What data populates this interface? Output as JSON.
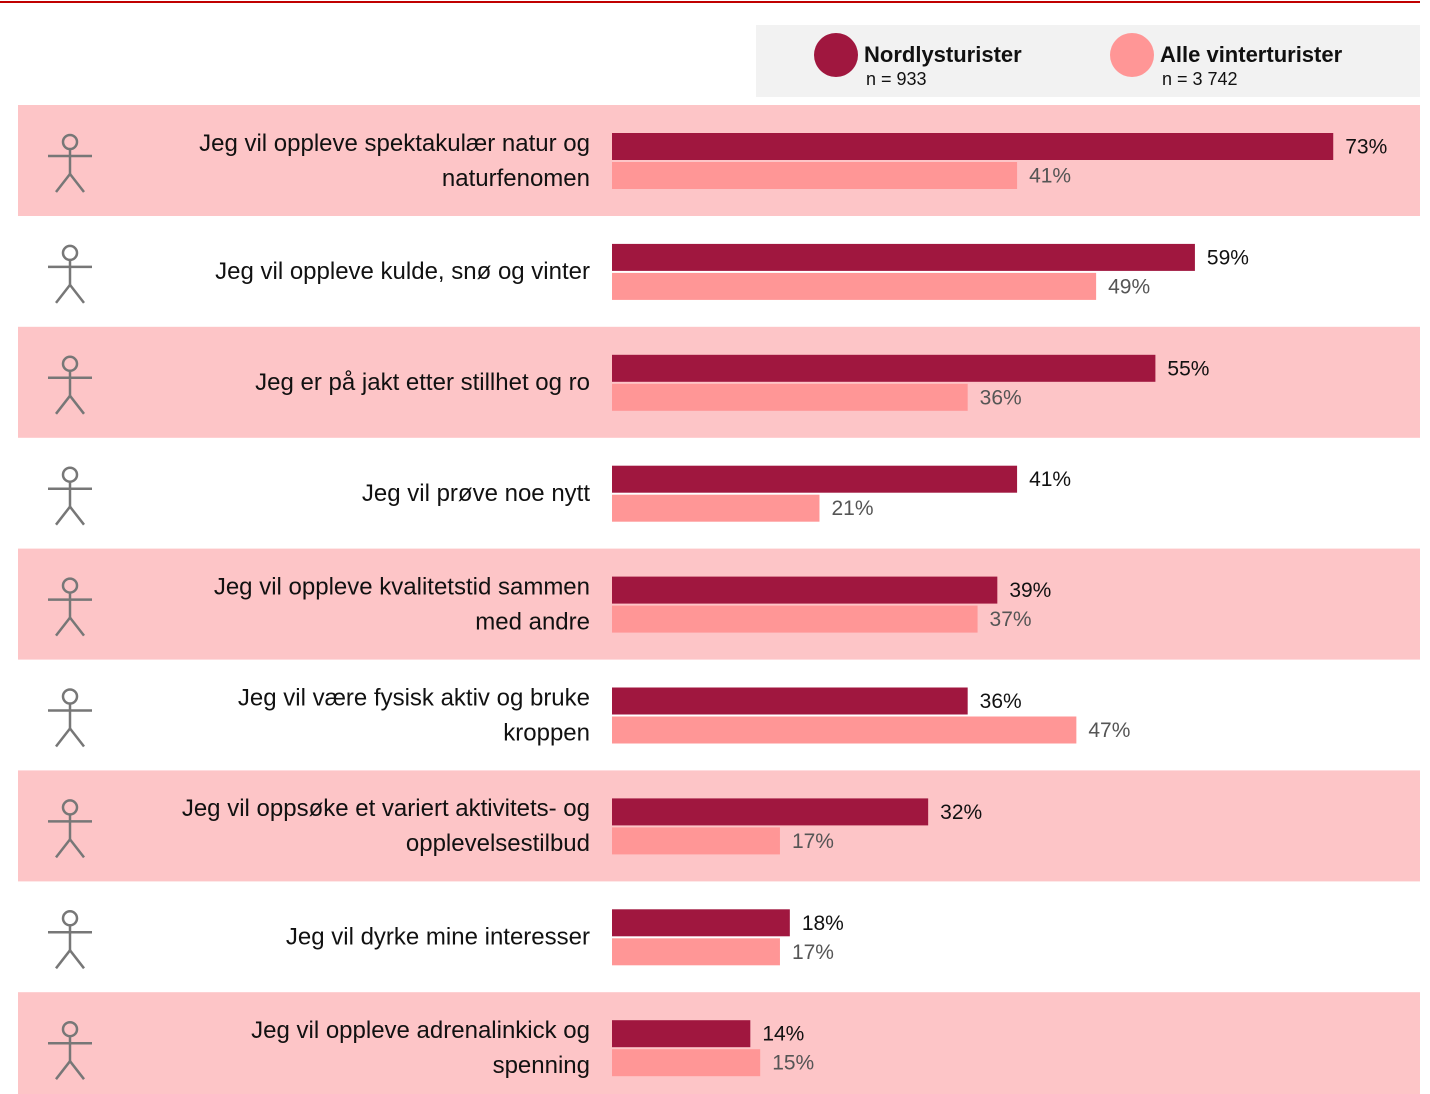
{
  "chart_data": {
    "type": "bar",
    "orientation": "horizontal",
    "categories": [
      [
        "Jeg vil oppleve spektakulær natur og",
        "naturfenomen"
      ],
      [
        "Jeg vil oppleve kulde, snø og vinter"
      ],
      [
        "Jeg er på jakt etter stillhet og ro"
      ],
      [
        "Jeg vil prøve noe nytt"
      ],
      [
        "Jeg vil oppleve kvalitetstid sammen",
        "med andre"
      ],
      [
        "Jeg vil være fysisk aktiv og bruke",
        "kroppen"
      ],
      [
        "Jeg vil oppsøke et variert aktivitets- og",
        "opplevelsestilbud"
      ],
      [
        "Jeg vil dyrke mine interesser"
      ],
      [
        "Jeg vil oppleve adrenalinkick og",
        "spenning"
      ]
    ],
    "series": [
      {
        "name": "Nordlysturister",
        "n_label": "n = 933",
        "color": "#a0173f",
        "values": [
          73,
          59,
          55,
          41,
          39,
          36,
          32,
          18,
          14
        ],
        "value_labels": [
          "73%",
          "59%",
          "55%",
          "41%",
          "39%",
          "36%",
          "32%",
          "18%",
          "14%"
        ]
      },
      {
        "name": "Alle vinterturister",
        "n_label": "n = 3 742",
        "color": "#ff9696",
        "values": [
          41,
          49,
          36,
          21,
          37,
          47,
          17,
          17,
          15
        ],
        "value_labels": [
          "41%",
          "49%",
          "36%",
          "21%",
          "37%",
          "47%",
          "17%",
          "17%",
          "15%"
        ]
      }
    ]
  }
}
